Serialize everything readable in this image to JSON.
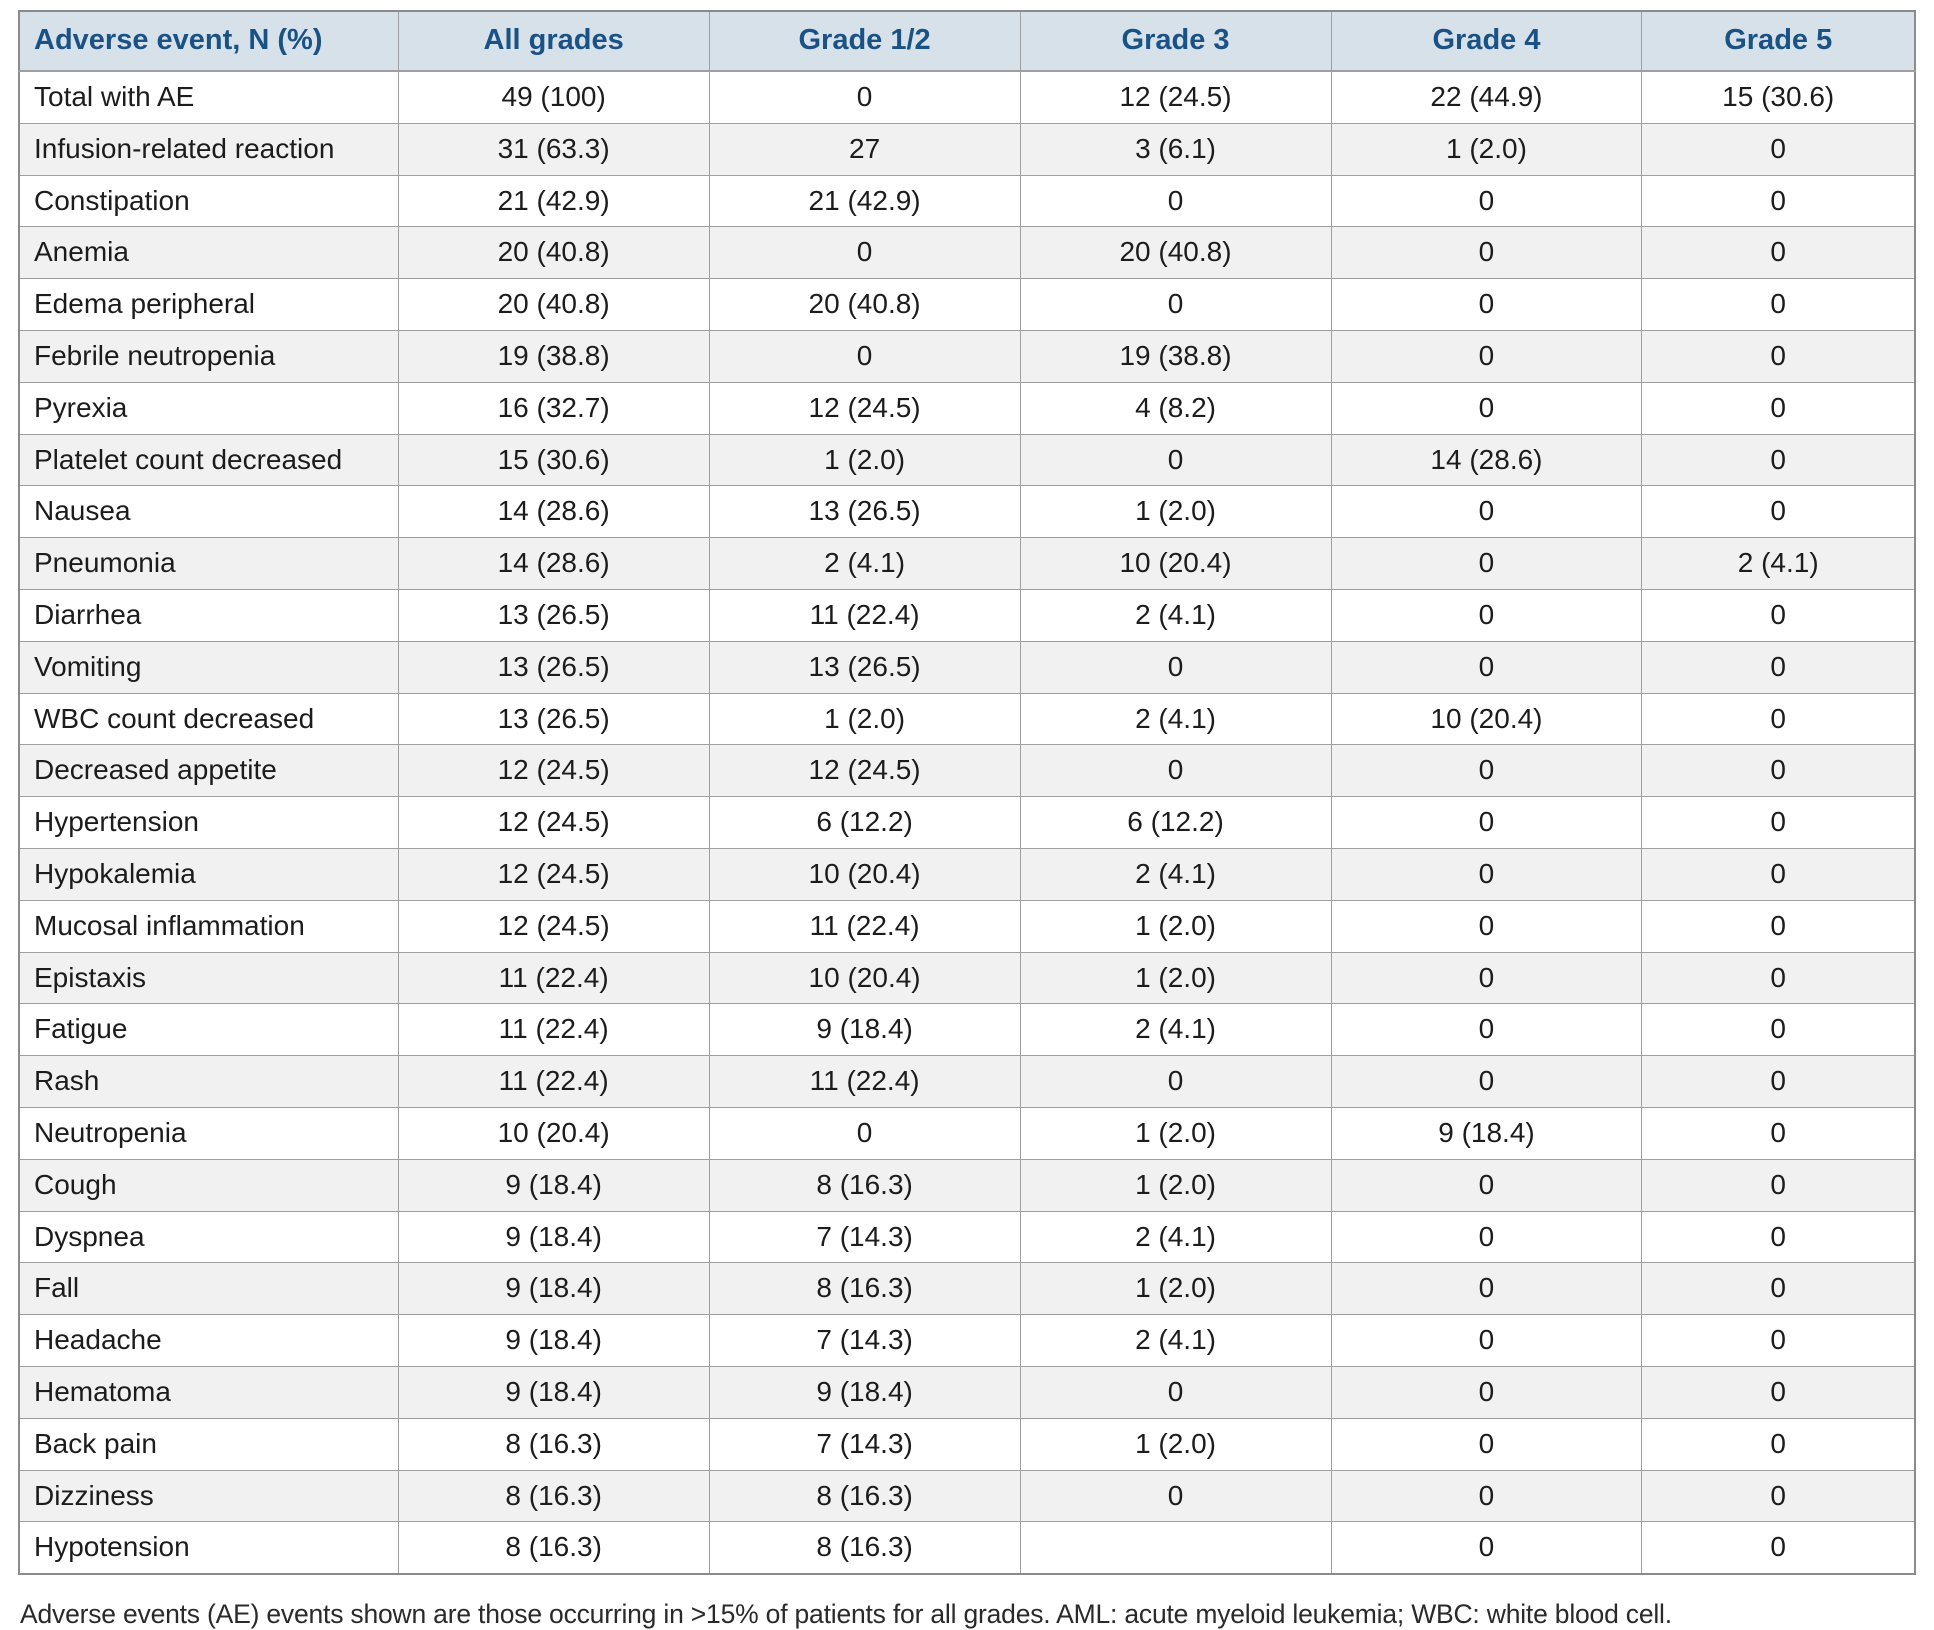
{
  "colors": {
    "header_bg": "#d7e1ea",
    "header_text": "#1a5286",
    "alt_row_bg": "#f1f1f1",
    "cell_border": "#9f9f9f",
    "outer_border": "#8b8b8b"
  },
  "chart_data": {
    "type": "table",
    "columns": [
      "Adverse event, N (%)",
      "All grades",
      "Grade 1/2",
      "Grade 3",
      "Grade 4",
      "Grade 5"
    ],
    "rows": [
      [
        "Total with AE",
        "49 (100)",
        "0",
        "12 (24.5)",
        "22 (44.9)",
        "15 (30.6)"
      ],
      [
        "Infusion-related reaction",
        "31 (63.3)",
        "27",
        "3 (6.1)",
        "1 (2.0)",
        "0"
      ],
      [
        "Constipation",
        "21 (42.9)",
        "21 (42.9)",
        "0",
        "0",
        "0"
      ],
      [
        "Anemia",
        "20 (40.8)",
        "0",
        "20 (40.8)",
        "0",
        "0"
      ],
      [
        "Edema peripheral",
        "20 (40.8)",
        "20 (40.8)",
        "0",
        "0",
        "0"
      ],
      [
        "Febrile neutropenia",
        "19 (38.8)",
        "0",
        "19 (38.8)",
        "0",
        "0"
      ],
      [
        "Pyrexia",
        "16 (32.7)",
        "12 (24.5)",
        "4 (8.2)",
        "0",
        "0"
      ],
      [
        "Platelet count decreased",
        "15 (30.6)",
        "1 (2.0)",
        "0",
        "14 (28.6)",
        "0"
      ],
      [
        "Nausea",
        "14 (28.6)",
        "13 (26.5)",
        "1 (2.0)",
        "0",
        "0"
      ],
      [
        "Pneumonia",
        "14 (28.6)",
        "2 (4.1)",
        "10 (20.4)",
        "0",
        "2 (4.1)"
      ],
      [
        "Diarrhea",
        "13 (26.5)",
        "11 (22.4)",
        "2 (4.1)",
        "0",
        "0"
      ],
      [
        "Vomiting",
        "13 (26.5)",
        "13 (26.5)",
        "0",
        "0",
        "0"
      ],
      [
        "WBC count decreased",
        "13 (26.5)",
        "1 (2.0)",
        "2 (4.1)",
        "10 (20.4)",
        "0"
      ],
      [
        "Decreased appetite",
        "12 (24.5)",
        "12 (24.5)",
        "0",
        "0",
        "0"
      ],
      [
        "Hypertension",
        "12 (24.5)",
        "6 (12.2)",
        "6 (12.2)",
        "0",
        "0"
      ],
      [
        "Hypokalemia",
        "12 (24.5)",
        "10 (20.4)",
        "2 (4.1)",
        "0",
        "0"
      ],
      [
        "Mucosal inflammation",
        "12 (24.5)",
        "11 (22.4)",
        "1 (2.0)",
        "0",
        "0"
      ],
      [
        "Epistaxis",
        "11 (22.4)",
        "10 (20.4)",
        "1 (2.0)",
        "0",
        "0"
      ],
      [
        "Fatigue",
        "11 (22.4)",
        "9 (18.4)",
        "2 (4.1)",
        "0",
        "0"
      ],
      [
        "Rash",
        "11 (22.4)",
        "11 (22.4)",
        "0",
        "0",
        "0"
      ],
      [
        "Neutropenia",
        "10 (20.4)",
        "0",
        "1 (2.0)",
        "9 (18.4)",
        "0"
      ],
      [
        "Cough",
        "9 (18.4)",
        "8 (16.3)",
        "1 (2.0)",
        "0",
        "0"
      ],
      [
        "Dyspnea",
        "9 (18.4)",
        "7 (14.3)",
        "2 (4.1)",
        "0",
        "0"
      ],
      [
        "Fall",
        "9 (18.4)",
        "8 (16.3)",
        "1 (2.0)",
        "0",
        "0"
      ],
      [
        "Headache",
        "9 (18.4)",
        "7 (14.3)",
        "2 (4.1)",
        "0",
        "0"
      ],
      [
        "Hematoma",
        "9 (18.4)",
        "9 (18.4)",
        "0",
        "0",
        "0"
      ],
      [
        "Back pain",
        "8 (16.3)",
        "7 (14.3)",
        "1 (2.0)",
        "0",
        "0"
      ],
      [
        "Dizziness",
        "8 (16.3)",
        "8 (16.3)",
        "0",
        "0",
        "0"
      ],
      [
        "Hypotension",
        "8 (16.3)",
        "8 (16.3)",
        "",
        "0",
        "0"
      ]
    ],
    "footnote": "Adverse events (AE) events shown are those occurring in >15% of patients for all grades. AML: acute myeloid leukemia; WBC: white blood cell."
  }
}
